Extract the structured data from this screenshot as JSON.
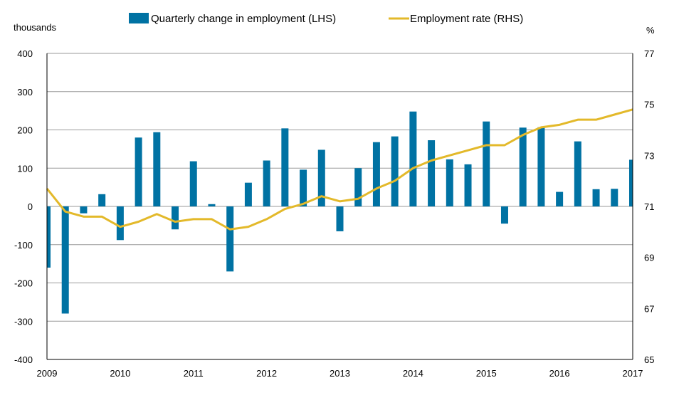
{
  "chart_data": {
    "type": "bar+line",
    "title": "",
    "left_axis_unit": "thousands",
    "right_axis_unit": "%",
    "left_ylim": [
      -400,
      400
    ],
    "left_ticks": [
      -400,
      -300,
      -200,
      -100,
      0,
      100,
      200,
      300,
      400
    ],
    "left_tick_labels": [
      "-400",
      "-300",
      "-200",
      "-100",
      "0",
      "100",
      "200",
      "300",
      "400"
    ],
    "right_ylim": [
      65,
      77
    ],
    "right_ticks": [
      65,
      67,
      69,
      71,
      73,
      75,
      77
    ],
    "right_tick_labels": [
      "65",
      "67",
      "69",
      "71",
      "73",
      "75",
      "77"
    ],
    "x_ticks": [
      "2009",
      "2010",
      "2011",
      "2012",
      "2013",
      "2014",
      "2015",
      "2016",
      "2017"
    ],
    "grid": "horizontal",
    "legend": "top",
    "series": [
      {
        "name": "Quarterly change in employment (LHS)",
        "type": "bar",
        "axis": "left",
        "color": "#0072a3",
        "values": [
          -160,
          -280,
          -18,
          32,
          -88,
          180,
          194,
          -60,
          118,
          6,
          -170,
          62,
          120,
          204,
          96,
          148,
          -65,
          100,
          168,
          183,
          248,
          173,
          123,
          110,
          222,
          -45,
          206,
          207,
          38,
          170,
          45,
          46,
          122
        ]
      },
      {
        "name": "Employment rate (RHS)",
        "type": "line",
        "axis": "right",
        "color": "#e3b92a",
        "values": [
          71.7,
          70.8,
          70.6,
          70.6,
          70.2,
          70.4,
          70.7,
          70.4,
          70.5,
          70.5,
          70.1,
          70.2,
          70.5,
          70.9,
          71.1,
          71.4,
          71.2,
          71.3,
          71.7,
          72.0,
          72.5,
          72.8,
          73.0,
          73.2,
          73.4,
          73.4,
          73.8,
          74.1,
          74.2,
          74.4,
          74.4,
          74.6,
          74.8
        ]
      }
    ]
  }
}
